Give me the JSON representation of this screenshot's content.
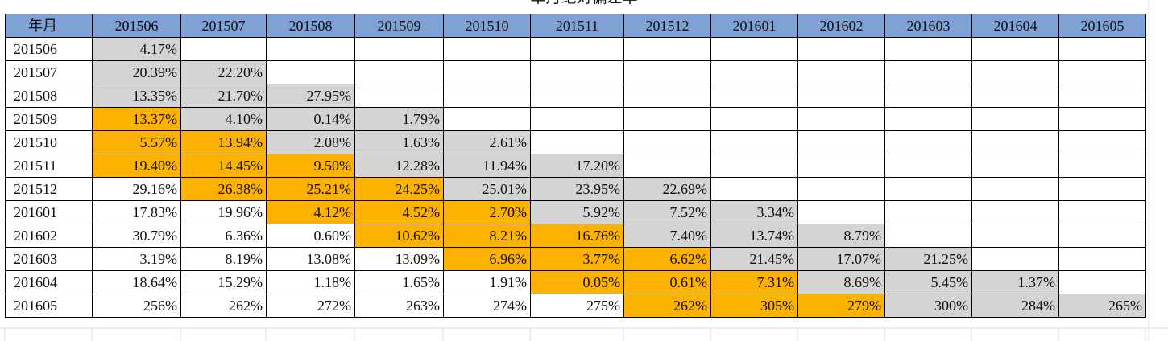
{
  "title": "单月绝对偏差率",
  "corner_label": "年月",
  "columns": [
    "201506",
    "201507",
    "201508",
    "201509",
    "201510",
    "201511",
    "201512",
    "201601",
    "201602",
    "201603",
    "201604",
    "201605"
  ],
  "colors": {
    "header": "#7fa1d6",
    "gray": "#d4d4d4",
    "orange": "#fdb100",
    "white": "#ffffff"
  },
  "rows": [
    {
      "label": "201506",
      "cells": [
        {
          "v": "4.17%",
          "c": "g"
        }
      ]
    },
    {
      "label": "201507",
      "cells": [
        {
          "v": "20.39%",
          "c": "g"
        },
        {
          "v": "22.20%",
          "c": "g"
        }
      ]
    },
    {
      "label": "201508",
      "cells": [
        {
          "v": "13.35%",
          "c": "g"
        },
        {
          "v": "21.70%",
          "c": "g"
        },
        {
          "v": "27.95%",
          "c": "g"
        }
      ]
    },
    {
      "label": "201509",
      "cells": [
        {
          "v": "13.37%",
          "c": "o"
        },
        {
          "v": "4.10%",
          "c": "g"
        },
        {
          "v": "0.14%",
          "c": "g"
        },
        {
          "v": "1.79%",
          "c": "g"
        }
      ]
    },
    {
      "label": "201510",
      "cells": [
        {
          "v": "5.57%",
          "c": "o"
        },
        {
          "v": "13.94%",
          "c": "o"
        },
        {
          "v": "2.08%",
          "c": "g"
        },
        {
          "v": "1.63%",
          "c": "g"
        },
        {
          "v": "2.61%",
          "c": "g"
        }
      ]
    },
    {
      "label": "201511",
      "cells": [
        {
          "v": "19.40%",
          "c": "o"
        },
        {
          "v": "14.45%",
          "c": "o"
        },
        {
          "v": "9.50%",
          "c": "o"
        },
        {
          "v": "12.28%",
          "c": "g"
        },
        {
          "v": "11.94%",
          "c": "g"
        },
        {
          "v": "17.20%",
          "c": "g"
        }
      ]
    },
    {
      "label": "201512",
      "cells": [
        {
          "v": "29.16%",
          "c": "w"
        },
        {
          "v": "26.38%",
          "c": "o"
        },
        {
          "v": "25.21%",
          "c": "o"
        },
        {
          "v": "24.25%",
          "c": "o"
        },
        {
          "v": "25.01%",
          "c": "g"
        },
        {
          "v": "23.95%",
          "c": "g"
        },
        {
          "v": "22.69%",
          "c": "g"
        }
      ]
    },
    {
      "label": "201601",
      "cells": [
        {
          "v": "17.83%",
          "c": "w"
        },
        {
          "v": "19.96%",
          "c": "w"
        },
        {
          "v": "4.12%",
          "c": "o"
        },
        {
          "v": "4.52%",
          "c": "o"
        },
        {
          "v": "2.70%",
          "c": "o"
        },
        {
          "v": "5.92%",
          "c": "g"
        },
        {
          "v": "7.52%",
          "c": "g"
        },
        {
          "v": "3.34%",
          "c": "g"
        }
      ]
    },
    {
      "label": "201602",
      "cells": [
        {
          "v": "30.79%",
          "c": "w"
        },
        {
          "v": "6.36%",
          "c": "w"
        },
        {
          "v": "0.60%",
          "c": "w"
        },
        {
          "v": "10.62%",
          "c": "o"
        },
        {
          "v": "8.21%",
          "c": "o"
        },
        {
          "v": "16.76%",
          "c": "o"
        },
        {
          "v": "7.40%",
          "c": "g"
        },
        {
          "v": "13.74%",
          "c": "g"
        },
        {
          "v": "8.79%",
          "c": "g"
        }
      ]
    },
    {
      "label": "201603",
      "cells": [
        {
          "v": "3.19%",
          "c": "w"
        },
        {
          "v": "8.19%",
          "c": "w"
        },
        {
          "v": "13.08%",
          "c": "w"
        },
        {
          "v": "13.09%",
          "c": "w"
        },
        {
          "v": "6.96%",
          "c": "o"
        },
        {
          "v": "3.77%",
          "c": "o"
        },
        {
          "v": "6.62%",
          "c": "o"
        },
        {
          "v": "21.45%",
          "c": "g"
        },
        {
          "v": "17.07%",
          "c": "g"
        },
        {
          "v": "21.25%",
          "c": "g"
        }
      ]
    },
    {
      "label": "201604",
      "cells": [
        {
          "v": "18.64%",
          "c": "w"
        },
        {
          "v": "15.29%",
          "c": "w"
        },
        {
          "v": "1.18%",
          "c": "w"
        },
        {
          "v": "1.65%",
          "c": "w"
        },
        {
          "v": "1.91%",
          "c": "w"
        },
        {
          "v": "0.05%",
          "c": "o"
        },
        {
          "v": "0.61%",
          "c": "o"
        },
        {
          "v": "7.31%",
          "c": "o"
        },
        {
          "v": "8.69%",
          "c": "g"
        },
        {
          "v": "5.45%",
          "c": "g"
        },
        {
          "v": "1.37%",
          "c": "g"
        }
      ]
    },
    {
      "label": "201605",
      "cells": [
        {
          "v": "256%",
          "c": "w"
        },
        {
          "v": "262%",
          "c": "w"
        },
        {
          "v": "272%",
          "c": "w"
        },
        {
          "v": "263%",
          "c": "w"
        },
        {
          "v": "274%",
          "c": "w"
        },
        {
          "v": "275%",
          "c": "w"
        },
        {
          "v": "262%",
          "c": "o"
        },
        {
          "v": "305%",
          "c": "o"
        },
        {
          "v": "279%",
          "c": "o"
        },
        {
          "v": "300%",
          "c": "g"
        },
        {
          "v": "284%",
          "c": "g"
        },
        {
          "v": "265%",
          "c": "g"
        }
      ]
    }
  ]
}
